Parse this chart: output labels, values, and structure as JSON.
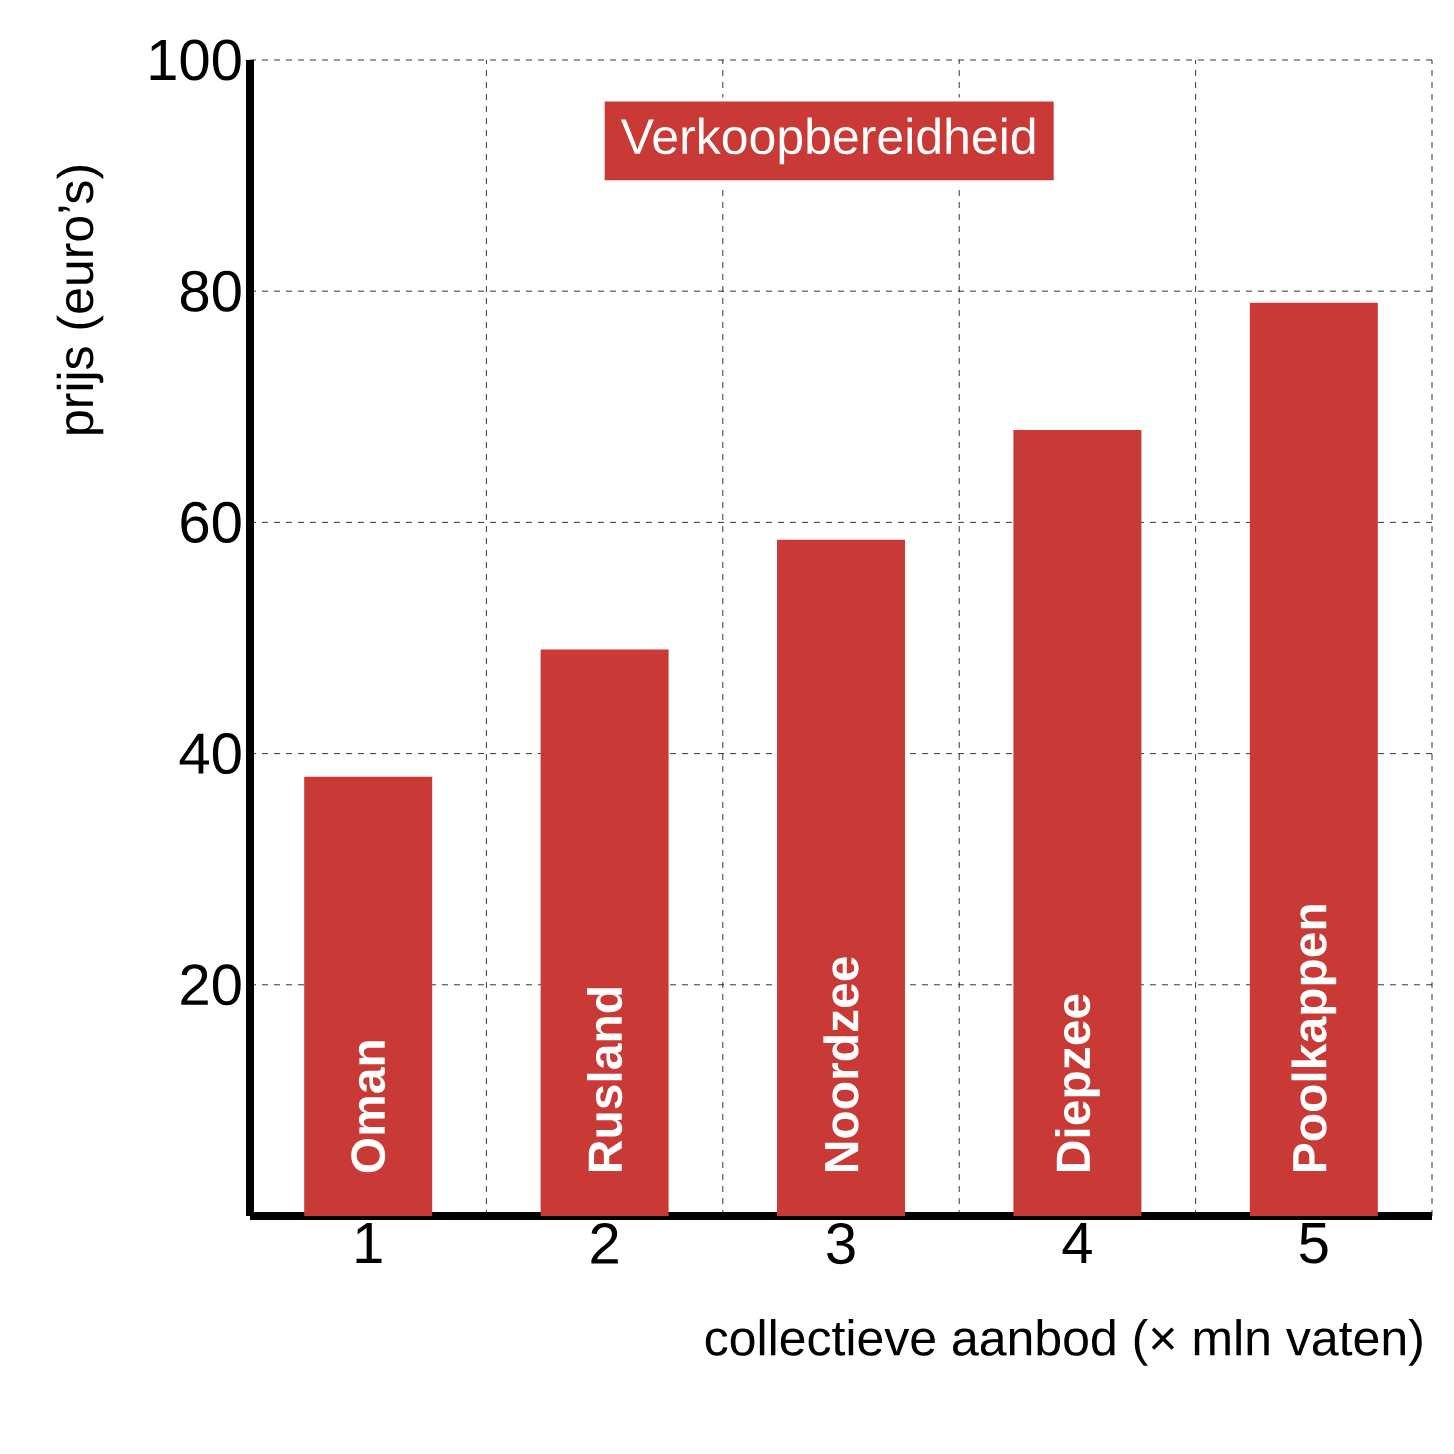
{
  "chart_data": {
    "type": "bar",
    "title": "Verkoopbereidheid",
    "xlabel": "collectieve aanbod (× mln vaten)",
    "ylabel": "prijs (euro’s)",
    "categories": [
      "1",
      "2",
      "3",
      "4",
      "5"
    ],
    "values": [
      38,
      49,
      58.5,
      68,
      79
    ],
    "color": "#c93a36",
    "ylim": [
      0,
      100
    ],
    "yticks": [
      20,
      40,
      60,
      80,
      100
    ],
    "grid": true,
    "annotations": [
      "Oman",
      "Rusland",
      "Noordzee",
      "Diepzee",
      "Poolkappen"
    ]
  }
}
